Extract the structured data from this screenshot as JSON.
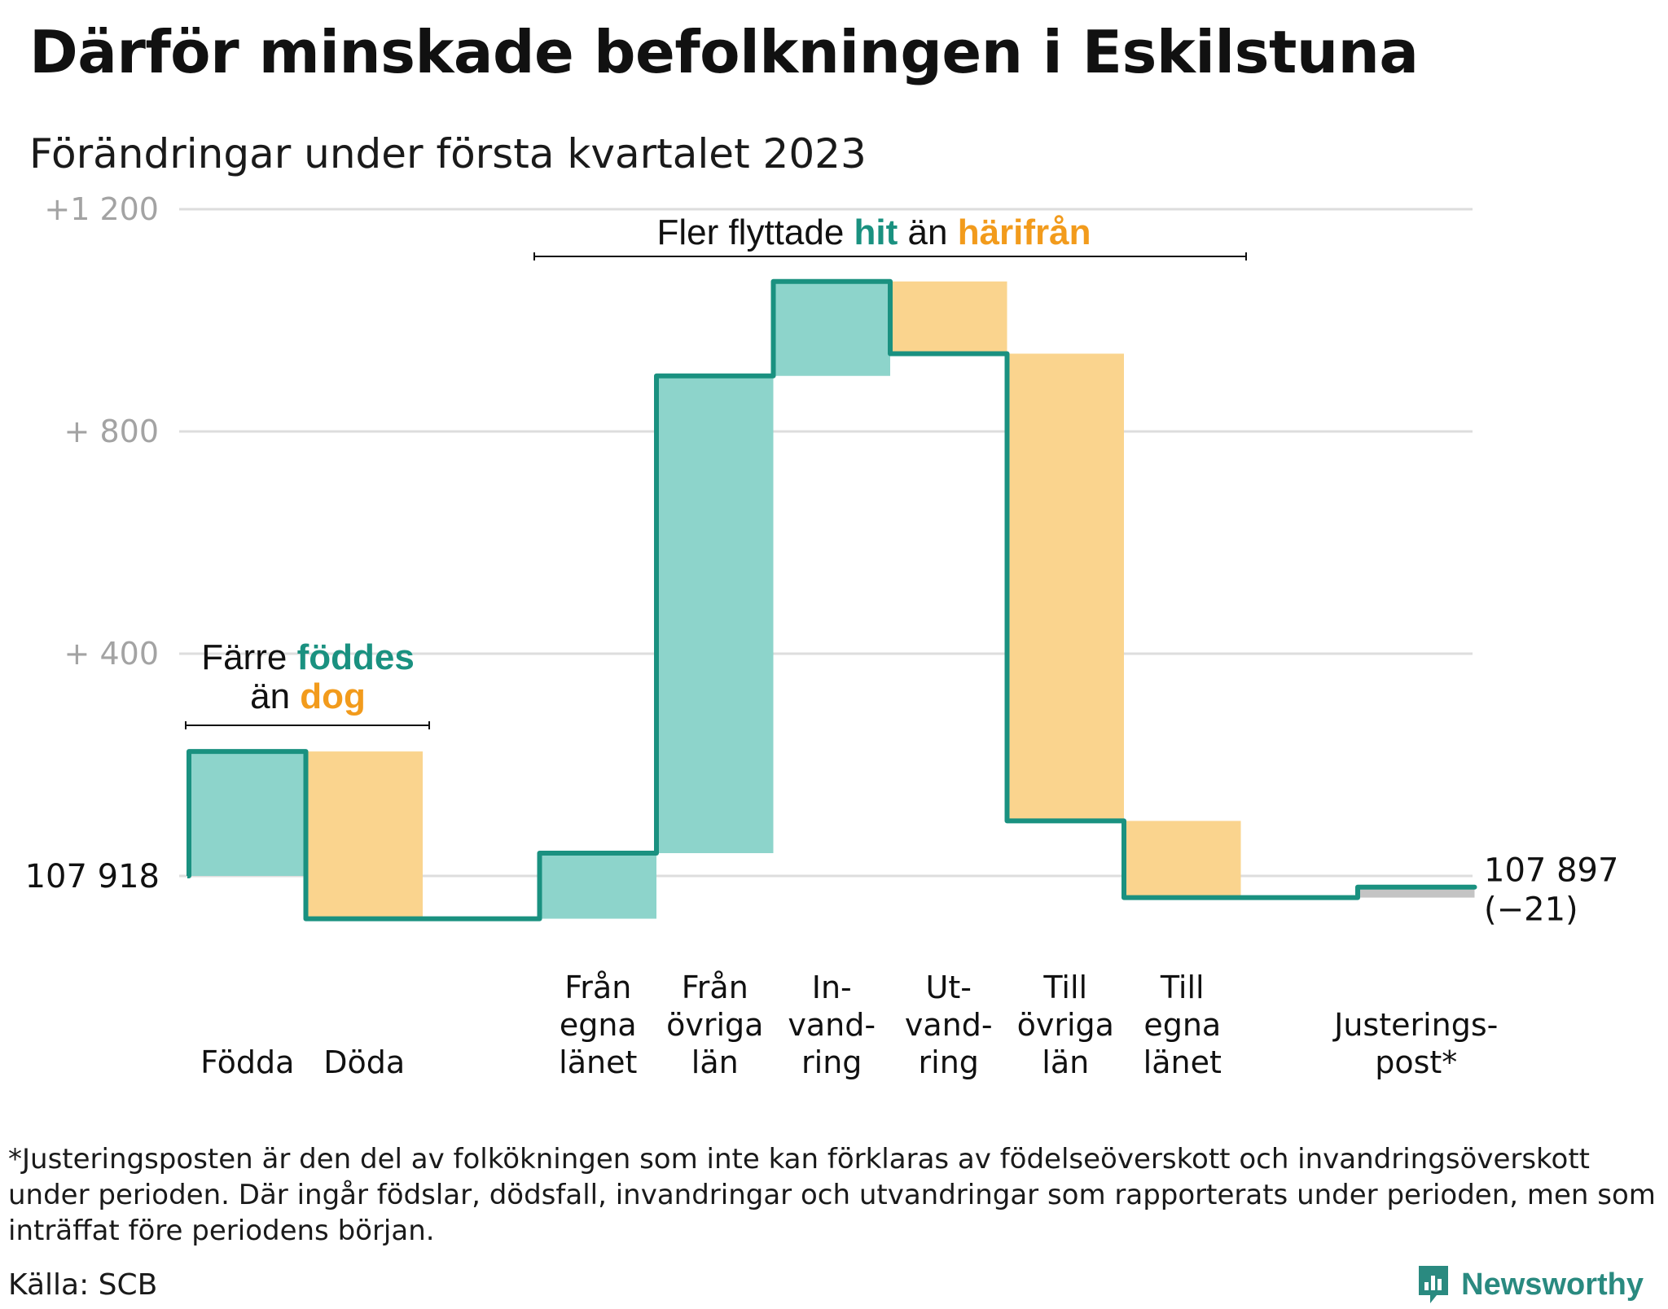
{
  "title": "Därför minskade befolkningen i Eskilstuna",
  "subtitle": "Förändringar under första kvartalet 2023",
  "chart_data": {
    "type": "waterfall",
    "start": {
      "label": "107 918",
      "population": 107918,
      "value": 0
    },
    "end": {
      "label": "107 897",
      "change_label": "(−21)",
      "population": 107897,
      "value": -21
    },
    "y_ticks": [
      {
        "value": 1200,
        "label": "+1 200"
      },
      {
        "value": 800,
        "label": "+ 800"
      },
      {
        "value": 400,
        "label": "+ 400"
      }
    ],
    "ylim": [
      -150,
      1200
    ],
    "grid": true,
    "steps": [
      {
        "id": "fodda",
        "label": "Födda",
        "change": 224,
        "kind": "in"
      },
      {
        "id": "doda",
        "label": "Döda",
        "change": -301,
        "kind": "out"
      },
      {
        "id": "gap",
        "label": "",
        "change": 0,
        "kind": "none"
      },
      {
        "id": "fran-egna",
        "label": "Från egna länet",
        "label_lines": [
          "Från",
          "egna",
          "länet"
        ],
        "change": 118,
        "kind": "in"
      },
      {
        "id": "fran-ovriga",
        "label": "Från övriga län",
        "label_lines": [
          "Från",
          "övriga",
          "län"
        ],
        "change": 859,
        "kind": "in"
      },
      {
        "id": "invandring",
        "label": "In-vand-ring",
        "label_lines": [
          "In-",
          "vand-",
          "ring"
        ],
        "change": 170,
        "kind": "in"
      },
      {
        "id": "utvandring",
        "label": "Ut-vand-ring",
        "label_lines": [
          "Ut-",
          "vand-",
          "ring"
        ],
        "change": -130,
        "kind": "out"
      },
      {
        "id": "till-ovriga",
        "label": "Till övriga län",
        "label_lines": [
          "Till",
          "övriga",
          "län"
        ],
        "change": -841,
        "kind": "out"
      },
      {
        "id": "till-egna",
        "label": "Till egna länet",
        "label_lines": [
          "Till",
          "egna",
          "länet"
        ],
        "change": -138,
        "kind": "out"
      },
      {
        "id": "gap2",
        "label": "",
        "change": 0,
        "kind": "none"
      },
      {
        "id": "justering",
        "label": "Justeringspost*",
        "label_lines": [
          "Justerings-",
          "post*"
        ],
        "change": 19,
        "kind": "adjust"
      }
    ],
    "annotations": [
      {
        "id": "births",
        "lines": [
          [
            {
              "text": "Färre ",
              "role": "plain"
            },
            {
              "text": "föddes",
              "role": "in"
            }
          ],
          [
            {
              "text": "än ",
              "role": "plain"
            },
            {
              "text": "dog",
              "role": "out"
            }
          ]
        ]
      },
      {
        "id": "migration",
        "lines": [
          [
            {
              "text": "Fler flyttade ",
              "role": "plain"
            },
            {
              "text": "hit",
              "role": "in"
            },
            {
              "text": " än ",
              "role": "plain"
            },
            {
              "text": "härifrån",
              "role": "out"
            }
          ]
        ]
      }
    ],
    "colors": {
      "line": "#1a9180",
      "in_fill": "#8dd4cb",
      "out_fill": "#fad48e",
      "adjust_fill": "#c4c4c4",
      "in_text": "#1a9180",
      "out_text": "#f29b1c",
      "grid": "#dddddd",
      "tick_text": "#a3a3a3"
    }
  },
  "footnote": "*Justeringsposten är den del av folkökningen som inte kan förklaras av födelseöverskott och invandringsöverskott under perioden. Där ingår födslar, dödsfall, invandringar och utvandringar som rapporterats under perioden, men som inträffat före periodens början.",
  "source": "Källa: SCB",
  "logo": {
    "text": "Newsworthy",
    "icon": "newsworthy-logo-icon"
  }
}
